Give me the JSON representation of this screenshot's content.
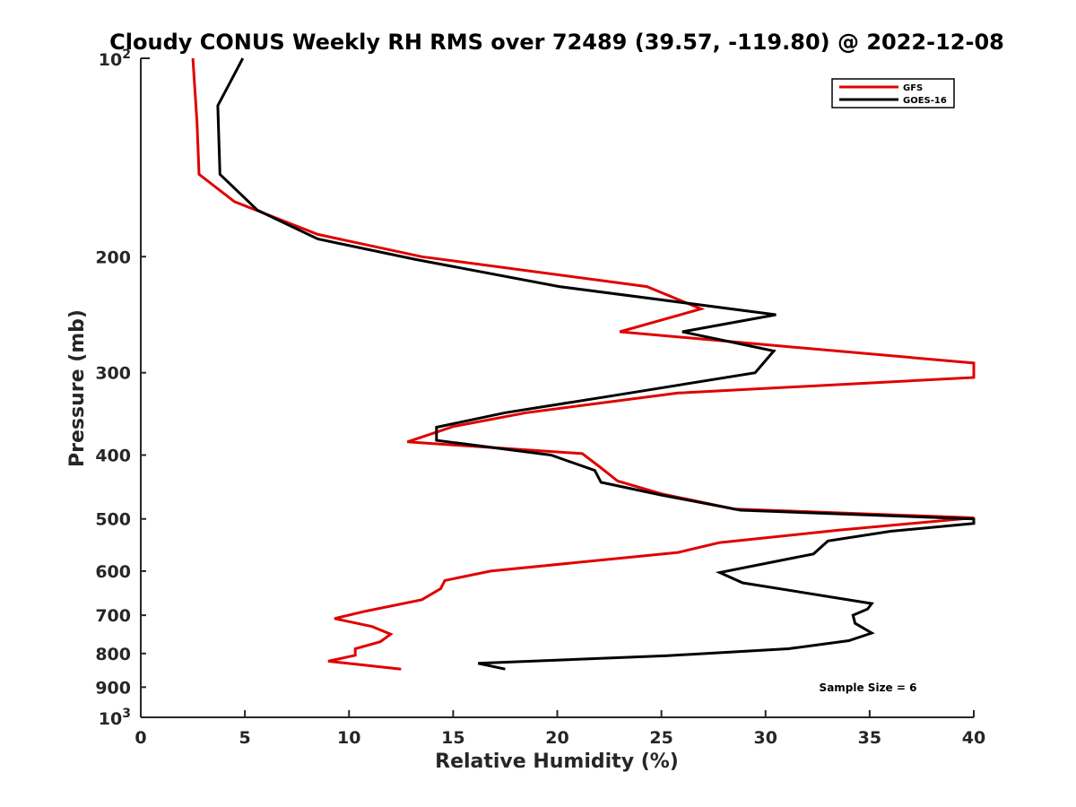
{
  "chart_data": {
    "type": "line",
    "title": "Cloudy CONUS Weekly RH RMS over 72489 (39.57, -119.80) @ 2022-12-08",
    "xlabel": "Relative Humidity (%)",
    "ylabel": "Pressure (mb)",
    "xlim": [
      0,
      40
    ],
    "ylim": [
      100,
      1000
    ],
    "y_scale": "log",
    "y_reversed": true,
    "grid": false,
    "legend_position": "top-right",
    "x_ticks": [
      0,
      5,
      10,
      15,
      20,
      25,
      30,
      35,
      40
    ],
    "x_tick_labels": [
      "0",
      "5",
      "10",
      "15",
      "20",
      "25",
      "30",
      "35",
      "40"
    ],
    "y_ticks": [
      200,
      300,
      400,
      500,
      600,
      700,
      800,
      900
    ],
    "y_tick_labels": [
      "200",
      "300",
      "400",
      "500",
      "600",
      "700",
      "800",
      "900"
    ],
    "y_decade_labels": [
      {
        "value": 100,
        "base": "10",
        "exp": "2"
      },
      {
        "value": 1000,
        "base": "10",
        "exp": "3"
      }
    ],
    "annotation": "Sample Size = 6",
    "series": [
      {
        "name": "GFS",
        "color": "#e00000",
        "points": [
          [
            2.5,
            100
          ],
          [
            2.7,
            125
          ],
          [
            2.8,
            150
          ],
          [
            4.5,
            165
          ],
          [
            8.5,
            185
          ],
          [
            13.5,
            200
          ],
          [
            24.3,
            222
          ],
          [
            26.9,
            240
          ],
          [
            23.0,
            260
          ],
          [
            40.0,
            290
          ],
          [
            40.0,
            305
          ],
          [
            25.8,
            322
          ],
          [
            18.5,
            345
          ],
          [
            15.0,
            362
          ],
          [
            12.8,
            382
          ],
          [
            21.2,
            398
          ],
          [
            22.0,
            416
          ],
          [
            22.9,
            438
          ],
          [
            25.0,
            458
          ],
          [
            28.5,
            483
          ],
          [
            40.0,
            498
          ],
          [
            33.5,
            520
          ],
          [
            27.8,
            543
          ],
          [
            25.8,
            562
          ],
          [
            16.8,
            600
          ],
          [
            14.6,
            620
          ],
          [
            14.4,
            638
          ],
          [
            13.5,
            663
          ],
          [
            10.8,
            690
          ],
          [
            9.3,
            708
          ],
          [
            11.1,
            728
          ],
          [
            12.0,
            748
          ],
          [
            11.5,
            768
          ],
          [
            10.3,
            787
          ],
          [
            10.3,
            805
          ],
          [
            9.0,
            822
          ],
          [
            12.5,
            845
          ]
        ]
      },
      {
        "name": "GOES-16",
        "color": "#000000",
        "points": [
          [
            4.9,
            100
          ],
          [
            3.7,
            118
          ],
          [
            3.8,
            150
          ],
          [
            5.6,
            170
          ],
          [
            8.5,
            188
          ],
          [
            13.2,
            202
          ],
          [
            20.1,
            222
          ],
          [
            30.5,
            245
          ],
          [
            26.0,
            260
          ],
          [
            30.4,
            278
          ],
          [
            29.5,
            300
          ],
          [
            22.7,
            325
          ],
          [
            17.5,
            345
          ],
          [
            14.2,
            363
          ],
          [
            14.2,
            380
          ],
          [
            19.7,
            400
          ],
          [
            21.8,
            422
          ],
          [
            22.1,
            440
          ],
          [
            25.0,
            460
          ],
          [
            28.8,
            485
          ],
          [
            40.0,
            500
          ],
          [
            40.0,
            508
          ],
          [
            36.0,
            522
          ],
          [
            33.0,
            540
          ],
          [
            32.3,
            565
          ],
          [
            27.8,
            603
          ],
          [
            28.9,
            625
          ],
          [
            35.1,
            672
          ],
          [
            34.9,
            685
          ],
          [
            34.2,
            700
          ],
          [
            34.3,
            720
          ],
          [
            35.1,
            745
          ],
          [
            34.0,
            765
          ],
          [
            31.1,
            787
          ],
          [
            25.3,
            806
          ],
          [
            16.2,
            828
          ],
          [
            17.5,
            845
          ]
        ]
      }
    ]
  }
}
